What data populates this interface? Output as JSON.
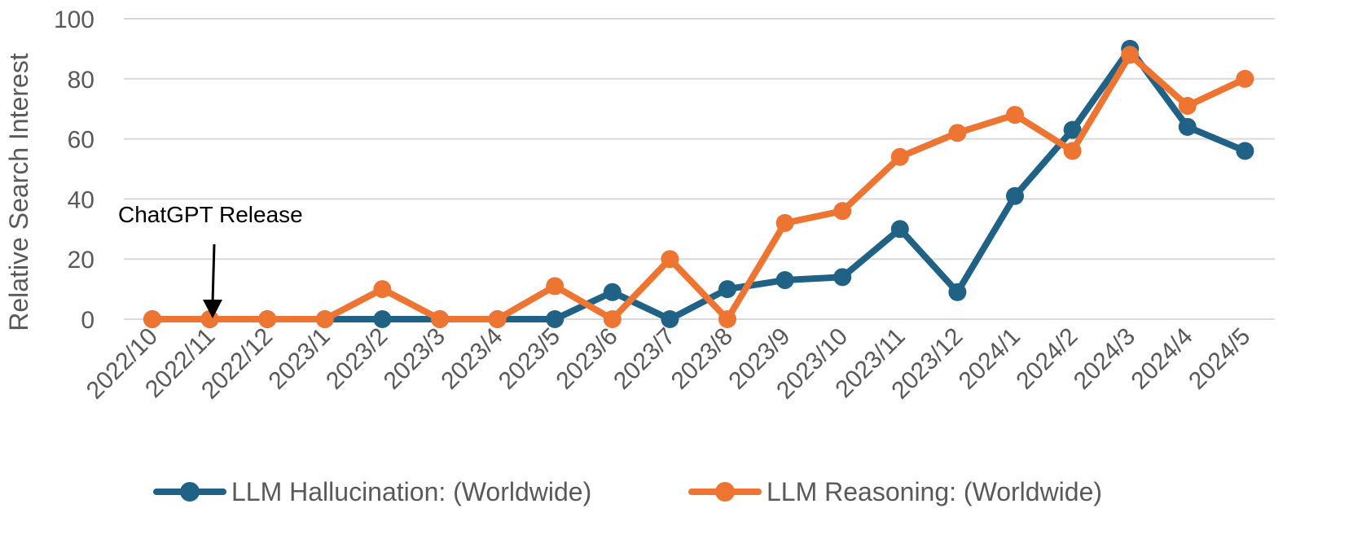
{
  "chart_data": {
    "type": "line",
    "title": "",
    "xlabel": "",
    "ylabel": "Relative Search Interest",
    "ylim": [
      0,
      100
    ],
    "yticks": [
      0,
      20,
      40,
      60,
      80,
      100
    ],
    "grid": true,
    "legend_position": "bottom",
    "categories": [
      "2022/10",
      "2022/11",
      "2022/12",
      "2023/1",
      "2023/2",
      "2023/3",
      "2023/4",
      "2023/5",
      "2023/6",
      "2023/7",
      "2023/8",
      "2023/9",
      "2023/10",
      "2023/11",
      "2023/12",
      "2024/1",
      "2024/2",
      "2024/3",
      "2024/4",
      "2024/5"
    ],
    "series": [
      {
        "name": "LLM Hallucination: (Worldwide)",
        "color": "#1f6286",
        "values": [
          0,
          0,
          0,
          0,
          0,
          0,
          0,
          0,
          9,
          0,
          10,
          13,
          14,
          30,
          9,
          41,
          63,
          90,
          64,
          56
        ]
      },
      {
        "name": "LLM Reasoning: (Worldwide)",
        "color": "#ed7431",
        "values": [
          0,
          0,
          0,
          0,
          10,
          0,
          0,
          11,
          0,
          20,
          0,
          32,
          36,
          54,
          62,
          68,
          56,
          88,
          71,
          80
        ]
      }
    ],
    "annotations": [
      {
        "text": "ChatGPT Release",
        "category": "2022/11",
        "arrow": true
      }
    ]
  }
}
